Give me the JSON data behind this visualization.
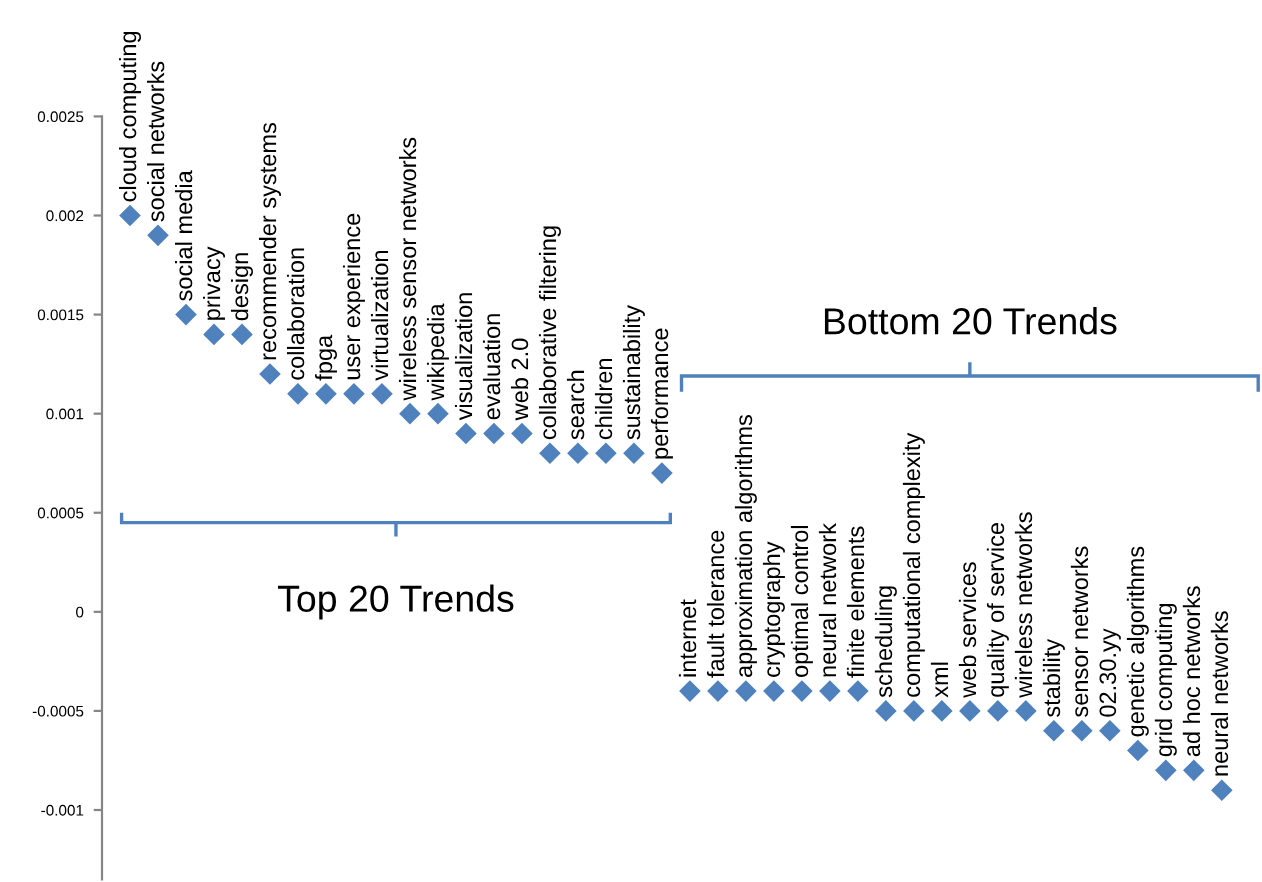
{
  "chart_data": {
    "type": "scatter",
    "categories": [
      "cloud computing",
      "social networks",
      "social media",
      "privacy",
      "design",
      "recommender systems",
      "collaboration",
      "fpga",
      "user experience",
      "virtualization",
      "wireless sensor networks",
      "wikipedia",
      "visualization",
      "evaluation",
      "web 2.0",
      "collaborative filtering",
      "search",
      "children",
      "sustainability",
      "performance",
      "internet",
      "fault tolerance",
      "approximation algorithms",
      "cryptography",
      "optimal control",
      "neural network",
      "finite elements",
      "scheduling",
      "computational complexity",
      "xml",
      "web services",
      "quality of service",
      "wireless networks",
      "stability",
      "sensor networks",
      "02.30.yy",
      "genetic algorithms",
      "grid computing",
      "ad hoc networks",
      "neural networks"
    ],
    "series": [
      {
        "color": "#4f81bd",
        "values": [
          0.002,
          0.0019,
          0.0015,
          0.0014,
          0.0014,
          0.0012,
          0.0011,
          0.0011,
          0.0011,
          0.0011,
          0.001,
          0.001,
          0.0009,
          0.0009,
          0.0009,
          0.0008,
          0.0008,
          0.0008,
          0.0008,
          0.0007,
          -0.0004,
          -0.0004,
          -0.0004,
          -0.0004,
          -0.0004,
          -0.0004,
          -0.0004,
          -0.0005,
          -0.0005,
          -0.0005,
          -0.0005,
          -0.0005,
          -0.0005,
          -0.0006,
          -0.0006,
          -0.0006,
          -0.0007,
          -0.0008,
          -0.0008,
          -0.0009
        ]
      }
    ],
    "ylim": [
      -0.00135,
      0.0025
    ],
    "yticks": [
      -0.001,
      -0.0005,
      0,
      0.0005,
      0.001,
      0.0015,
      0.002,
      0.0025
    ],
    "marker": "diamond",
    "grid": false,
    "annotations": [
      "Top 20 Trends",
      "Bottom 20 Trends"
    ]
  }
}
